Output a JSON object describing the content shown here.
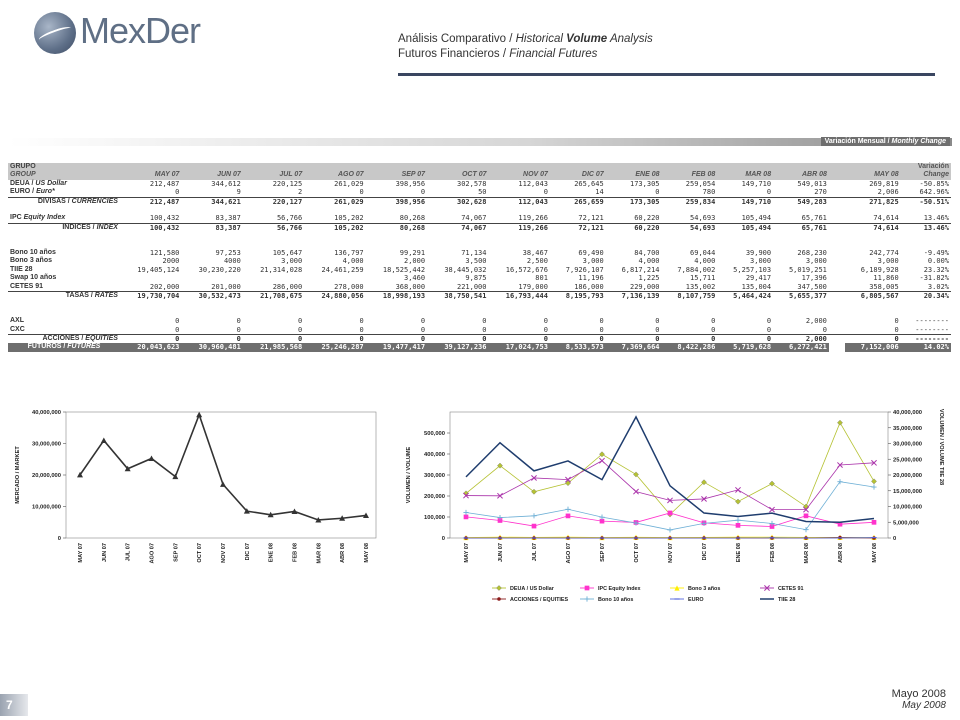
{
  "brand": {
    "logo_text": "MexDer"
  },
  "header": {
    "line1_es": "Análisis Comparativo",
    "line1_sep": " / ",
    "line1_en_a": "Historical ",
    "line1_en_b": "Volume",
    "line1_en_c": " Analysis",
    "line2_es": "Futuros Financieros",
    "line2_sep": " / ",
    "line2_en": "Financial Futures"
  },
  "band": {
    "label_es": "Variación Mensual / ",
    "label_en": "Monthly Change"
  },
  "table": {
    "head": {
      "group_es": "GRUPO",
      "group_en": "GROUP",
      "variation_es": "Variación",
      "change_en": "Change",
      "months": [
        "MAY 07",
        "JUN 07",
        "JUL 07",
        "AGO 07",
        "SEP 07",
        "OCT 07",
        "NOV 07",
        "DIC 07",
        "ENE 08",
        "FEB 08",
        "MAR 08",
        "ABR 08"
      ],
      "current": "MAY 08"
    },
    "rows": [
      {
        "type": "row",
        "es": "DEUA / ",
        "en": "US Dollar",
        "v": [
          "212,487",
          "344,612",
          "220,125",
          "261,029",
          "398,956",
          "302,578",
          "112,043",
          "265,645",
          "173,305",
          "259,054",
          "149,710",
          "549,013"
        ],
        "cur": "269,819",
        "chg": "-50.85%"
      },
      {
        "type": "row",
        "es": "EURO / ",
        "en": "Euro*",
        "v": [
          "0",
          "9",
          "2",
          "0",
          "0",
          "50",
          "0",
          "14",
          "0",
          "780",
          "0",
          "270"
        ],
        "cur": "2,006",
        "chg": "642.96%"
      },
      {
        "type": "tot",
        "es": "DIVISAS / ",
        "en": "CURRENCIES",
        "v": [
          "212,487",
          "344,621",
          "220,127",
          "261,029",
          "398,956",
          "302,628",
          "112,043",
          "265,659",
          "173,305",
          "259,834",
          "149,710",
          "549,283"
        ],
        "cur": "271,825",
        "chg": "-50.51%"
      },
      {
        "type": "blank"
      },
      {
        "type": "row",
        "es": "IPC ",
        "en": "Equity Index",
        "v": [
          "100,432",
          "83,387",
          "56,766",
          "105,202",
          "80,268",
          "74,067",
          "119,266",
          "72,121",
          "60,220",
          "54,693",
          "105,494",
          "65,761"
        ],
        "cur": "74,614",
        "chg": "13.46%"
      },
      {
        "type": "tot",
        "es": "INDICES / ",
        "en": "INDEX",
        "v": [
          "100,432",
          "83,387",
          "56,766",
          "105,202",
          "80,268",
          "74,067",
          "119,266",
          "72,121",
          "60,220",
          "54,693",
          "105,494",
          "65,761"
        ],
        "cur": "74,614",
        "chg": "13.46%"
      },
      {
        "type": "blank"
      },
      {
        "type": "blank"
      },
      {
        "type": "row",
        "es": "Bono 10 años",
        "en": "",
        "v": [
          "121,580",
          "97,253",
          "105,647",
          "136,797",
          "99,291",
          "71,134",
          "38,467",
          "69,490",
          "84,700",
          "69,044",
          "39,900",
          "268,230"
        ],
        "cur": "242,774",
        "chg": "-9.49%"
      },
      {
        "type": "row",
        "es": "Bono 3 años",
        "en": "",
        "v": [
          "2000",
          "4000",
          "3,000",
          "4,000",
          "2,000",
          "3,500",
          "2,500",
          "3,000",
          "4,000",
          "4,000",
          "3,000",
          "3,000"
        ],
        "cur": "3,000",
        "chg": "0.00%"
      },
      {
        "type": "row",
        "es": "TIIE 28",
        "en": "",
        "v": [
          "19,405,124",
          "30,230,220",
          "21,314,028",
          "24,461,259",
          "18,525,442",
          "38,445,032",
          "16,572,676",
          "7,926,107",
          "6,817,214",
          "7,884,002",
          "5,257,103",
          "5,019,251"
        ],
        "cur": "6,189,928",
        "chg": "23.32%"
      },
      {
        "type": "row",
        "es": "Swap 10 años",
        "en": "",
        "v": [
          "",
          "",
          "",
          "",
          "3,460",
          "9,875",
          "801",
          "11,196",
          "1,225",
          "15,711",
          "29,417",
          "17,396"
        ],
        "cur": "11,860",
        "chg": "-31.82%"
      },
      {
        "type": "row",
        "es": "CETES 91",
        "en": "",
        "v": [
          "202,000",
          "201,000",
          "286,000",
          "278,000",
          "368,000",
          "221,000",
          "179,000",
          "186,000",
          "229,000",
          "135,002",
          "135,004",
          "347,500"
        ],
        "cur": "358,005",
        "chg": "3.02%"
      },
      {
        "type": "tot",
        "es": "TASAS / ",
        "en": "RATES",
        "v": [
          "19,730,704",
          "30,532,473",
          "21,708,675",
          "24,880,056",
          "18,998,193",
          "38,750,541",
          "16,793,444",
          "8,195,793",
          "7,136,139",
          "8,107,759",
          "5,464,424",
          "5,655,377"
        ],
        "cur": "6,805,567",
        "chg": "20.34%"
      },
      {
        "type": "blank"
      },
      {
        "type": "blank"
      },
      {
        "type": "row",
        "es": "AXL",
        "en": "",
        "v": [
          "0",
          "0",
          "0",
          "0",
          "0",
          "0",
          "0",
          "0",
          "0",
          "0",
          "0",
          "2,000"
        ],
        "cur": "0",
        "chg": "--------"
      },
      {
        "type": "row",
        "es": "CXC",
        "en": "",
        "v": [
          "0",
          "0",
          "0",
          "0",
          "0",
          "0",
          "0",
          "0",
          "0",
          "0",
          "0",
          "0"
        ],
        "cur": "0",
        "chg": "--------"
      },
      {
        "type": "tot",
        "es": "ACCIONES / ",
        "en": "EQUITIES",
        "v": [
          "0",
          "0",
          "0",
          "0",
          "0",
          "0",
          "0",
          "0",
          "0",
          "0",
          "0",
          "2,000"
        ],
        "cur": "0",
        "chg": "--------"
      },
      {
        "type": "grand",
        "es": "FUTUROS / ",
        "en": "FUTURES",
        "v": [
          "20,043,623",
          "30,960,481",
          "21,985,568",
          "25,246,287",
          "19,477,417",
          "39,127,236",
          "17,024,753",
          "8,533,573",
          "7,369,664",
          "8,422,286",
          "5,719,628",
          "6,272,421"
        ],
        "cur": "7,152,006",
        "chg": "14.02%"
      }
    ]
  },
  "chart_data": [
    {
      "type": "line",
      "ylabel": "MERCADO / MARKET",
      "ylim": [
        0,
        40000000
      ],
      "yticks": [
        "0",
        "10,000,000",
        "20,000,000",
        "30,000,000",
        "40,000,000"
      ],
      "categories": [
        "MAY 07",
        "JUN 07",
        "JUL 07",
        "AGO 07",
        "SEP 07",
        "OCT 07",
        "NOV 07",
        "DIC 07",
        "ENE 08",
        "FEB 08",
        "MAR 08",
        "ABR 08",
        "MAY 08"
      ],
      "series": [
        {
          "name": "",
          "color": "#333333",
          "values": [
            20043623,
            30960481,
            21985568,
            25246287,
            19477417,
            39127236,
            17024753,
            8533573,
            7369664,
            8422286,
            5719628,
            6272421,
            7152006
          ]
        }
      ]
    },
    {
      "type": "line",
      "ylabel": "VOLUMEN / VOLUME",
      "y2label": "VOLUMEN / VOLUME TIIE 28",
      "ylim": [
        0,
        600000
      ],
      "yticks": [
        "0",
        "100,000",
        "200,000",
        "300,000",
        "400,000",
        "500,000"
      ],
      "y2lim": [
        0,
        40000000
      ],
      "y2ticks": [
        "0",
        "5,000,000",
        "10,000,000",
        "15,000,000",
        "20,000,000",
        "25,000,000",
        "30,000,000",
        "35,000,000",
        "40,000,000"
      ],
      "categories": [
        "MAY 07",
        "JUN 07",
        "JUL 07",
        "AGO 07",
        "SEP 07",
        "OCT 07",
        "NOV 07",
        "DIC 07",
        "ENE 08",
        "FEB 08",
        "MAR 08",
        "ABR 08",
        "MAY 08"
      ],
      "series": [
        {
          "name": "DEUA / US Dollar",
          "color": "#b5c233",
          "marker": "diamond",
          "axis": "left",
          "values": [
            212487,
            344612,
            220125,
            261029,
            398956,
            302578,
            112043,
            265645,
            173305,
            259054,
            149710,
            549013,
            269819
          ]
        },
        {
          "name": "IPC  Equity Index",
          "color": "#ff33cc",
          "marker": "square",
          "axis": "left",
          "values": [
            100432,
            83387,
            56766,
            105202,
            80268,
            74067,
            119266,
            72121,
            60220,
            54693,
            105494,
            65761,
            74614
          ]
        },
        {
          "name": "Bono 3 años",
          "color": "#ffee00",
          "marker": "triangle",
          "axis": "left",
          "values": [
            2000,
            4000,
            3000,
            4000,
            2000,
            3500,
            2500,
            3000,
            4000,
            4000,
            3000,
            3000,
            3000
          ]
        },
        {
          "name": "CETES 91",
          "color": "#aa33aa",
          "marker": "x",
          "axis": "left",
          "values": [
            202000,
            201000,
            286000,
            278000,
            368000,
            221000,
            179000,
            186000,
            229000,
            135002,
            135004,
            347500,
            358005
          ]
        },
        {
          "name": "ACCIONES / EQUITIES",
          "color": "#8b1a1a",
          "marker": "circle",
          "axis": "left",
          "values": [
            0,
            0,
            0,
            0,
            0,
            0,
            0,
            0,
            0,
            0,
            0,
            2000,
            0
          ]
        },
        {
          "name": "Bono 10 años",
          "color": "#6fb0d6",
          "marker": "cross",
          "axis": "left",
          "values": [
            121580,
            97253,
            105647,
            136797,
            99291,
            71134,
            38467,
            69490,
            84700,
            69044,
            39900,
            268230,
            242774
          ]
        },
        {
          "name": "EURO",
          "color": "#5566dd",
          "marker": "dash",
          "axis": "left",
          "values": [
            0,
            9,
            2,
            0,
            0,
            50,
            0,
            14,
            0,
            780,
            0,
            270,
            2006
          ]
        },
        {
          "name": "TIIE 28",
          "color": "#1f3d6e",
          "marker": "none",
          "axis": "right",
          "values": [
            19405124,
            30230220,
            21314028,
            24461259,
            18525442,
            38445032,
            16572676,
            7926107,
            6817214,
            7884002,
            5257103,
            5019251,
            6189928
          ]
        }
      ]
    }
  ],
  "footer": {
    "es": "Mayo 2008",
    "en": "May 2008",
    "page": "7"
  }
}
